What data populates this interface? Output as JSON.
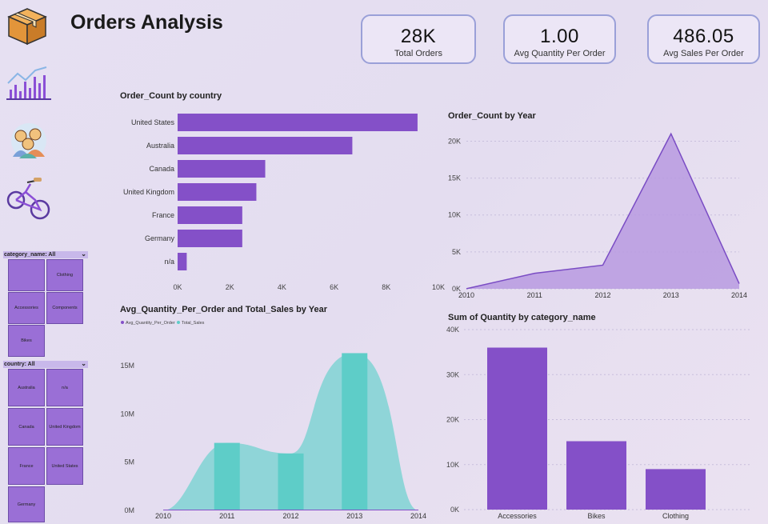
{
  "header": {
    "title": "Orders Analysis"
  },
  "kpis": [
    {
      "value": "28K",
      "label": "Total Orders"
    },
    {
      "value": "1.00",
      "label": "Avg Quantity Per Order"
    },
    {
      "value": "486.05",
      "label": "Avg Sales Per Order"
    }
  ],
  "nav_icons": [
    "box-icon",
    "chart-icon",
    "customers-icon",
    "bike-icon"
  ],
  "slicers": {
    "category": {
      "header": "category_name: All",
      "items": [
        "",
        "Clothing",
        "Accessories",
        "Components",
        "Bikes"
      ]
    },
    "country": {
      "header": "country: All",
      "items": [
        "Australia",
        "n/a",
        "Canada",
        "United Kingdom",
        "France",
        "United States",
        "Germany"
      ]
    }
  },
  "colors": {
    "purple": "#8450c8",
    "teal": "#5ecdc8",
    "teal_light": "#8ad4d6",
    "area": "#b79ae0"
  },
  "chart_data": [
    {
      "type": "bar",
      "orientation": "horizontal",
      "title": "Order_Count by country",
      "categories": [
        "United States",
        "Australia",
        "Canada",
        "United Kingdom",
        "France",
        "Germany",
        "n/a"
      ],
      "values": [
        9200,
        6700,
        3360,
        3020,
        2480,
        2480,
        350
      ],
      "xlim": [
        0,
        10000
      ],
      "xticks": [
        "0K",
        "2K",
        "4K",
        "6K",
        "8K",
        "10K"
      ]
    },
    {
      "type": "area",
      "title": "Order_Count by Year",
      "x": [
        "2010",
        "2011",
        "2012",
        "2013",
        "2014"
      ],
      "values": [
        10,
        2100,
        3200,
        21000,
        700
      ],
      "ylim": [
        0,
        22000
      ],
      "yticks": [
        "0K",
        "5K",
        "10K",
        "15K",
        "20K"
      ]
    },
    {
      "type": "area",
      "title": "Avg_Quantity_Per_Order and Total_Sales by Year",
      "legend": [
        "Avg_Quantity_Per_Order",
        "Total_Sales"
      ],
      "x": [
        "2010",
        "2011",
        "2012",
        "2013",
        "2014"
      ],
      "series": [
        {
          "name": "Avg_Quantity_Per_Order",
          "values": [
            1,
            1,
            1,
            1,
            1
          ]
        },
        {
          "name": "Total_Sales",
          "values": [
            0,
            7000000,
            5900000,
            16300000,
            0
          ]
        }
      ],
      "ylim": [
        0,
        17000000
      ],
      "yticks": [
        "0M",
        "5M",
        "10M",
        "15M"
      ]
    },
    {
      "type": "bar",
      "title": "Sum of Quantity by category_name",
      "categories": [
        "Accessories",
        "Bikes",
        "Clothing"
      ],
      "values": [
        36000,
        15200,
        9000
      ],
      "ylim": [
        0,
        40000
      ],
      "yticks": [
        "0K",
        "10K",
        "20K",
        "30K",
        "40K"
      ]
    }
  ]
}
